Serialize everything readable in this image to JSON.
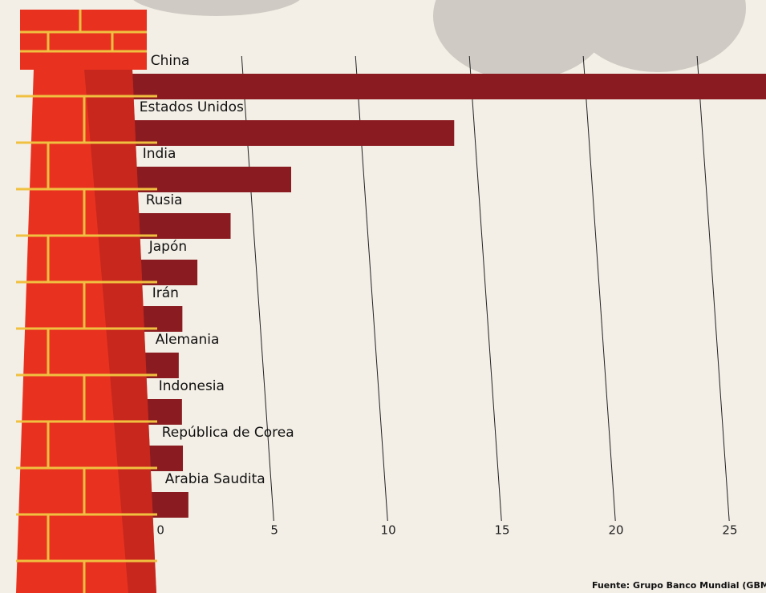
{
  "chart_data": {
    "type": "bar",
    "orientation": "horizontal",
    "categories": [
      "China",
      "Estados Unidos",
      "India",
      "Rusia",
      "Japón",
      "Irán",
      "Alemania",
      "Indonesia",
      "República de Corea",
      "Arabia Saudita"
    ],
    "values": [
      29,
      14.1,
      6.8,
      4.0,
      2.4,
      1.6,
      1.3,
      1.3,
      1.2,
      1.3
    ],
    "color": "#8a1b20",
    "xlim": [
      0,
      28
    ],
    "xticks": [
      0,
      5,
      10,
      15,
      20,
      25
    ],
    "grid": true,
    "source": "Fuente: Grupo Banco Mundial (GBM"
  }
}
